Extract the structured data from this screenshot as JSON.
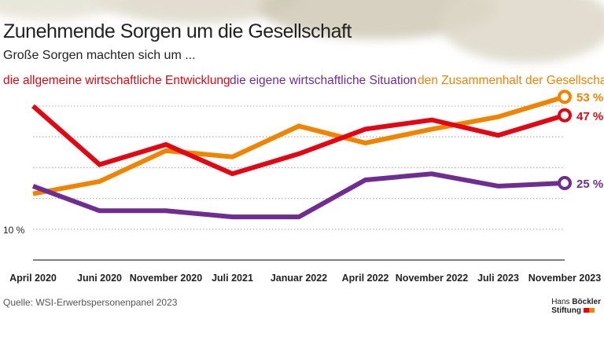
{
  "header": {
    "title": "Zunehmende Sorgen um die Gesellschaft",
    "subtitle": "Große Sorgen machten sich um ..."
  },
  "source": "Quelle: WSI-Erwerbspersonenpanel 2023",
  "logo": {
    "line1a": "Hans ",
    "line1b": "Böckler",
    "line2": "Stiftung"
  },
  "chart_data": {
    "type": "line",
    "categories": [
      "April 2020",
      "Juni 2020",
      "November 2020",
      "Juli 2021",
      "Januar 2022",
      "April 2022",
      "November 2022",
      "Juli 2023",
      "November 2023"
    ],
    "ylim": [
      0,
      55
    ],
    "gridlines": [
      10,
      20,
      30,
      40,
      50
    ],
    "y_tick_label": "10 %",
    "grid": true,
    "series": [
      {
        "name": "die allgemeine wirtschaftliche Entwicklung",
        "color": "#e30613",
        "values": [
          50,
          31,
          37.5,
          28,
          34.5,
          42.5,
          45.5,
          40.5,
          47
        ],
        "end_label": "47 %"
      },
      {
        "name": "die eigene wirtschaftliche Situation",
        "color": "#6f2c91",
        "values": [
          24,
          16,
          16,
          14,
          14,
          26,
          28,
          24,
          25
        ],
        "end_label": "25 %"
      },
      {
        "name": "den Zusammenhalt der Gesellschaft",
        "color": "#f08300",
        "values": [
          21.5,
          25.5,
          35.5,
          33.5,
          43.5,
          38,
          42.5,
          46.5,
          53
        ],
        "end_label": "53 %"
      }
    ]
  }
}
